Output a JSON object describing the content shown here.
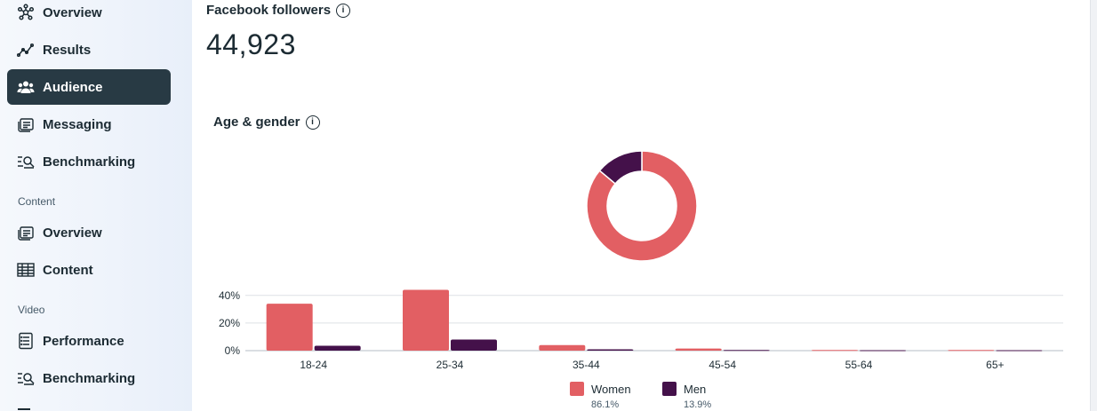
{
  "sidebar": {
    "items": [
      {
        "label": "Overview",
        "icon": "network-nodes-icon",
        "active": false
      },
      {
        "label": "Results",
        "icon": "trend-line-icon",
        "active": false
      },
      {
        "label": "Audience",
        "icon": "people-icon",
        "active": true
      },
      {
        "label": "Messaging",
        "icon": "message-cards-icon",
        "active": false
      },
      {
        "label": "Benchmarking",
        "icon": "list-search-icon",
        "active": false
      }
    ],
    "content_section": {
      "label": "Content",
      "items": [
        {
          "label": "Overview",
          "icon": "message-cards-icon"
        },
        {
          "label": "Content",
          "icon": "table-grid-icon"
        }
      ]
    },
    "video_section": {
      "label": "Video",
      "items": [
        {
          "label": "Performance",
          "icon": "document-list-icon"
        },
        {
          "label": "Benchmarking",
          "icon": "list-search-icon"
        }
      ]
    }
  },
  "followers": {
    "title": "Facebook followers",
    "value": "44,923"
  },
  "age_gender": {
    "title": "Age & gender"
  },
  "colors": {
    "women": "#e25f63",
    "men": "#44114a",
    "nav_active_bg": "#283a44"
  },
  "chart_data": [
    {
      "type": "pie",
      "title": "",
      "slices": [
        {
          "name": "Women",
          "value": 86.1
        },
        {
          "name": "Men",
          "value": 13.9
        }
      ]
    },
    {
      "type": "bar",
      "categories": [
        "18-24",
        "25-34",
        "35-44",
        "45-54",
        "55-64",
        "65+"
      ],
      "series": [
        {
          "name": "Women",
          "values": [
            34,
            44,
            4,
            1.5,
            0.5,
            0.5
          ]
        },
        {
          "name": "Men",
          "values": [
            3.5,
            8,
            1,
            0.5,
            0.3,
            0.3
          ]
        }
      ],
      "yticks": [
        "0%",
        "20%",
        "40%"
      ],
      "ylim": [
        0,
        45
      ],
      "grid": true,
      "legend": [
        {
          "name": "Women",
          "pct": "86.1%"
        },
        {
          "name": "Men",
          "pct": "13.9%"
        }
      ]
    }
  ]
}
